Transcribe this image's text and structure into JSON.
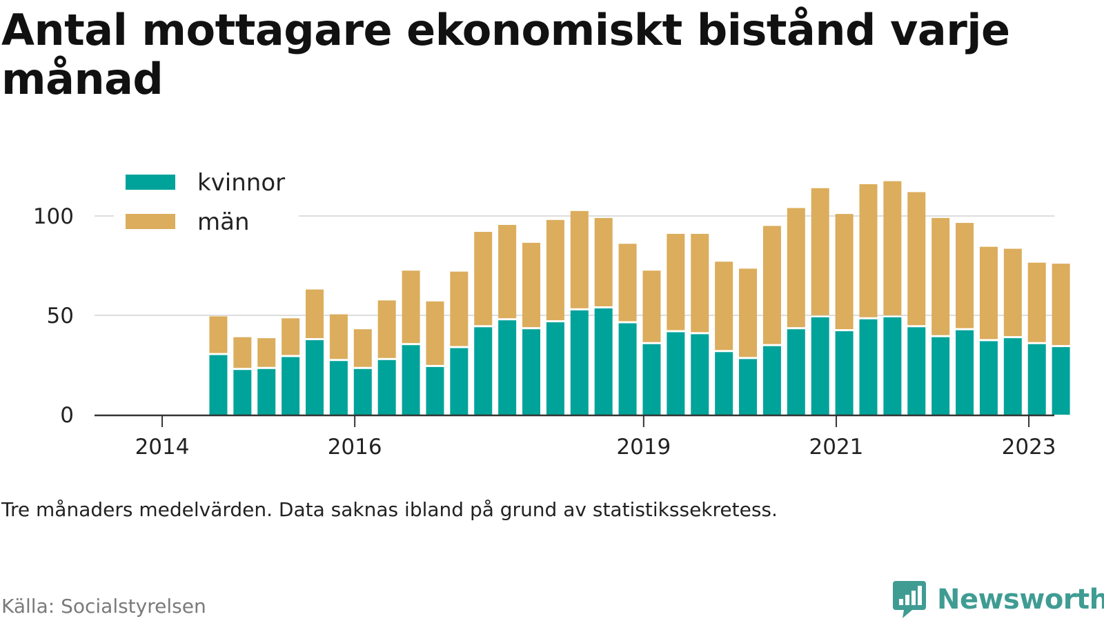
{
  "header": {
    "title": "Antal mottagare ekonomiskt bistånd varje månad"
  },
  "footer": {
    "note": "Tre månaders medelvärden. Data saknas ibland på grund av statistikssekretess.",
    "source": "Källa: Socialstyrelsen",
    "brand": "Newsworthy",
    "brand_icon": "newsworthy-logo-icon"
  },
  "colors": {
    "kvinnor": "#00a39a",
    "man": "#dbad5c",
    "grid": "#dddddd",
    "axis": "#333333",
    "text": "#222222",
    "brand": "#3f9c93"
  },
  "chart_data": {
    "type": "bar",
    "stacked": true,
    "title": "Antal mottagare ekonomiskt bistånd varje månad",
    "xlabel": "",
    "ylabel": "",
    "ylim": [
      0,
      125
    ],
    "yticks": [
      0,
      50,
      100
    ],
    "grid": true,
    "legend_position": "top-left",
    "x_tick_labels": [
      {
        "label": "2014",
        "x": "2014-01"
      },
      {
        "label": "2016",
        "x": "2016-01"
      },
      {
        "label": "2019",
        "x": "2019-01"
      },
      {
        "label": "2021",
        "x": "2021-01"
      },
      {
        "label": "2023",
        "x": "2023-01"
      }
    ],
    "categories": [
      "2014-08",
      "2014-11",
      "2015-02",
      "2015-05",
      "2015-08",
      "2015-11",
      "2016-02",
      "2016-05",
      "2016-08",
      "2016-11",
      "2017-02",
      "2017-05",
      "2017-08",
      "2017-11",
      "2018-02",
      "2018-05",
      "2018-08",
      "2018-11",
      "2019-02",
      "2019-05",
      "2019-08",
      "2019-11",
      "2020-02",
      "2020-05",
      "2020-08",
      "2020-11",
      "2021-02",
      "2021-05",
      "2021-08",
      "2021-11",
      "2022-02",
      "2022-05",
      "2022-08",
      "2022-11",
      "2023-02",
      "2023-05"
    ],
    "series": [
      {
        "name": "kvinnor",
        "values": [
          30,
          22.5,
          23,
          29,
          37.5,
          27,
          23,
          27.5,
          35,
          24,
          33.5,
          44,
          47.5,
          43,
          46.5,
          52.5,
          53.5,
          46,
          35.5,
          41.5,
          40.5,
          31.5,
          28,
          34.5,
          43,
          49,
          42,
          48,
          49,
          44,
          39,
          42.5,
          37,
          38.5,
          35.5,
          34
        ]
      },
      {
        "name": "män",
        "values": [
          19.5,
          16.5,
          15.5,
          19.5,
          25.5,
          23.5,
          20,
          30,
          37.5,
          33,
          38.5,
          48,
          48,
          43.5,
          51.5,
          50,
          45.5,
          40,
          37,
          49.5,
          50.5,
          45.5,
          45.5,
          60.5,
          61,
          65,
          59,
          68,
          68.5,
          68,
          60,
          54,
          47.5,
          45,
          41,
          42
        ]
      }
    ]
  }
}
